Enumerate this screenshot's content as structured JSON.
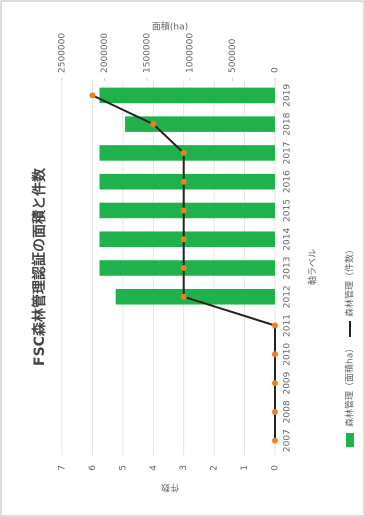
{
  "chart_data": {
    "type": "bar",
    "title": "FSC森林管理認証の面積と件数",
    "x_label": "軸ラベル",
    "y_label": "件数",
    "y2_label": "面積(ha)",
    "categories": [
      "2007",
      "2008",
      "2009",
      "2010",
      "2011",
      "2012",
      "2013",
      "2014",
      "2015",
      "2016",
      "2017",
      "2018",
      "2019"
    ],
    "series": [
      {
        "name": "森林管理（面積ha）",
        "type": "bar",
        "axis": "y2",
        "color": "#1fb14b",
        "values": [
          0,
          0,
          0,
          0,
          0,
          1870000,
          2060000,
          2060000,
          2060000,
          2060000,
          2060000,
          1760000,
          2060000
        ]
      },
      {
        "name": "森林管理（件数）",
        "type": "line",
        "color": "#222222",
        "marker_color": "#f0801f",
        "values": [
          0,
          0,
          0,
          0,
          0,
          3,
          3,
          3,
          3,
          3,
          3,
          4,
          6
        ]
      }
    ],
    "ylim": [
      0,
      7
    ],
    "yticks": [
      0,
      1,
      2,
      3,
      4,
      5,
      6,
      7
    ],
    "y2lim": [
      0,
      2500000
    ],
    "y2ticks": [
      0,
      500000,
      1000000,
      1500000,
      2000000,
      2500000
    ],
    "grid": true,
    "legend": "bottom"
  }
}
